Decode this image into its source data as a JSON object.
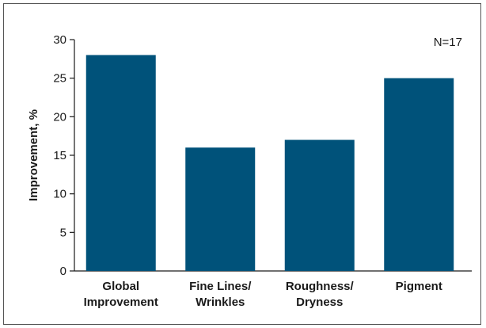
{
  "chart_data": {
    "type": "bar",
    "categories": [
      [
        "Global",
        "Improvement"
      ],
      [
        "Fine Lines/",
        "Wrinkles"
      ],
      [
        "Roughness/",
        "Dryness"
      ],
      [
        "Pigment"
      ]
    ],
    "values": [
      28,
      16,
      17,
      25
    ],
    "ylabel": "Improvement, %",
    "xlabel": "",
    "title": "",
    "ylim": [
      0,
      30
    ],
    "yticks": [
      0,
      5,
      10,
      15,
      20,
      25,
      30
    ],
    "annotation": "N=17",
    "grid": false,
    "legend": "none",
    "colors": {
      "bar": "#00527a",
      "axis": "#1a1a1a"
    }
  }
}
